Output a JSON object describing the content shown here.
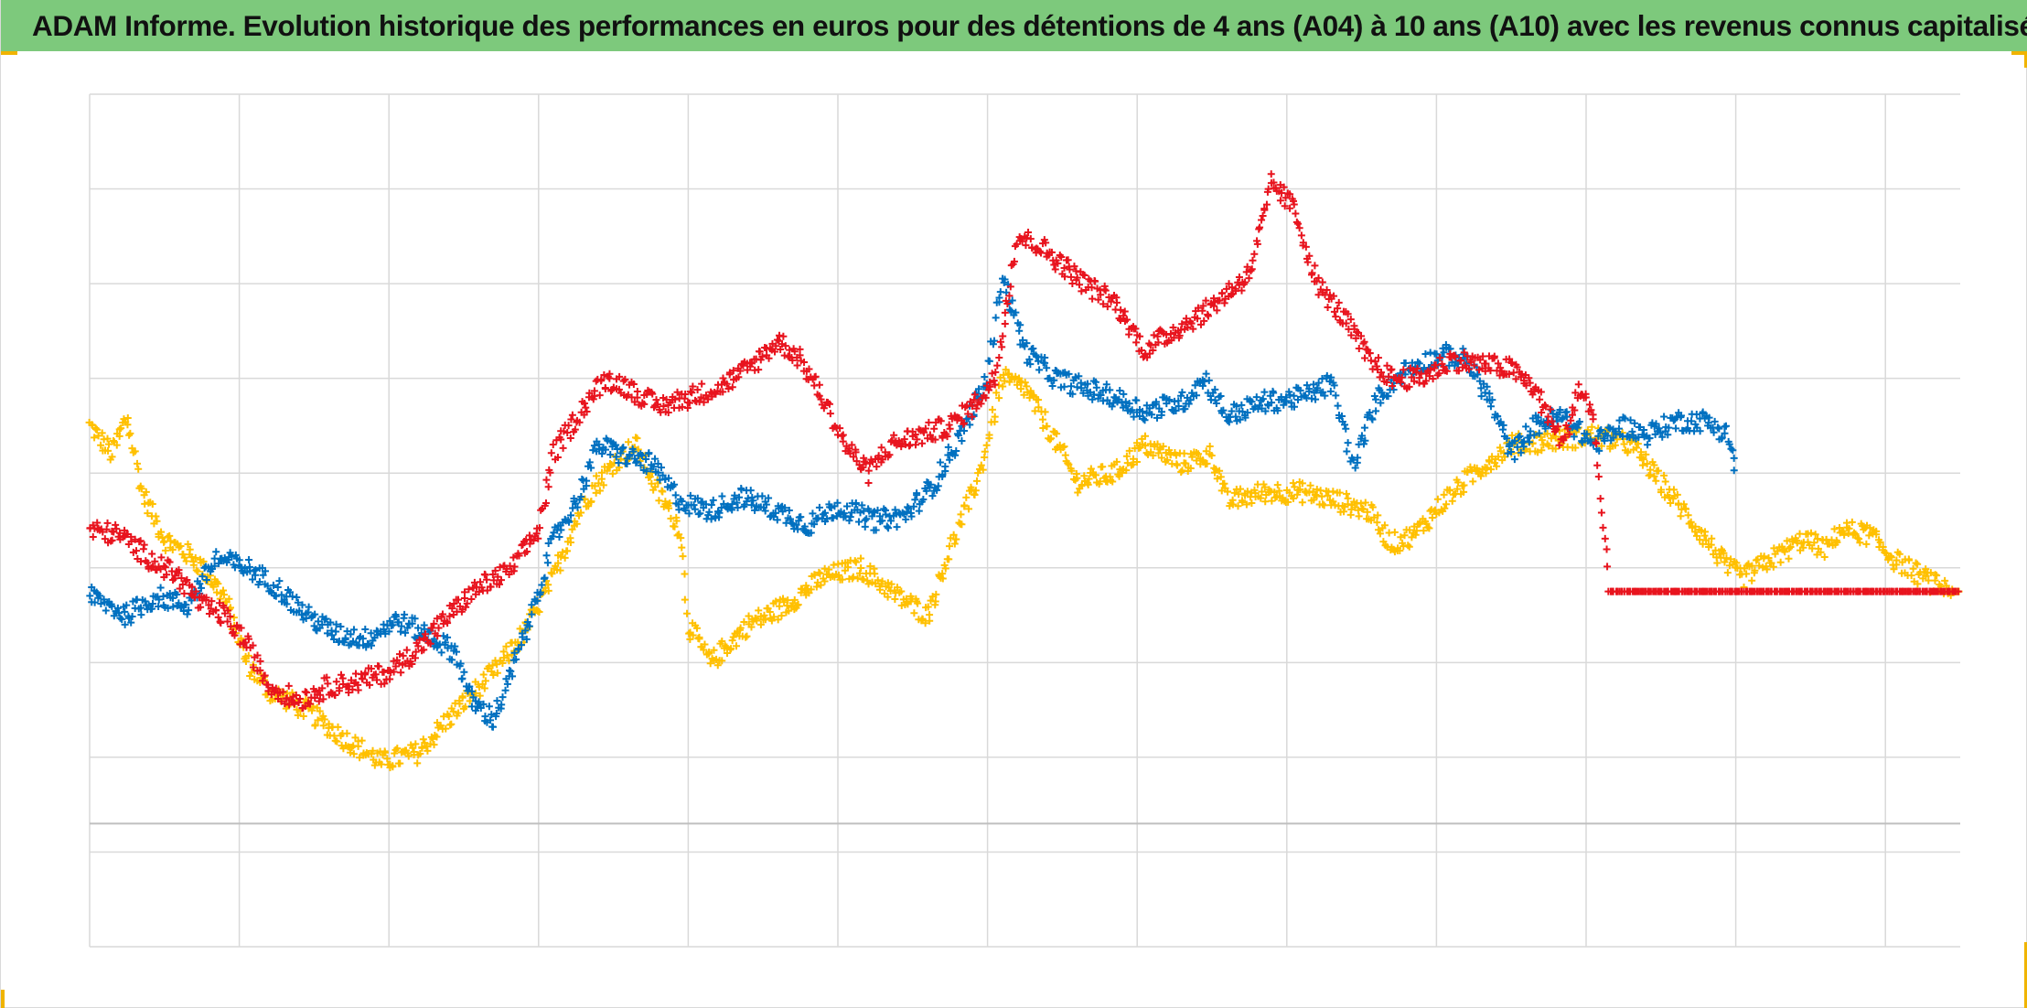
{
  "title": "ADAM Informe. Evolution historique des performances en euros pour des détentions de 4 ans (A04) à 10 ans (A10) avec les revenus connus capitalisés",
  "colors": {
    "title_bg": "#7dc97c",
    "grid": "#d9d9d9",
    "zero_line": "#bfbfbf",
    "handle": "#f0b400"
  },
  "chart_data": {
    "type": "scatter",
    "marker": "plus",
    "grid": true,
    "legend": "none",
    "axis_labels_visible": false,
    "x_gridlines": 12,
    "y_gridlines": 9,
    "series": [
      {
        "color": "#ffc000",
        "points": [
          [
            0,
            4.5
          ],
          [
            0.15,
            4.2
          ],
          [
            0.25,
            4.6
          ],
          [
            0.35,
            3.8
          ],
          [
            0.5,
            3.3
          ],
          [
            0.7,
            3.1
          ],
          [
            0.9,
            2.7
          ],
          [
            1.05,
            2.0
          ],
          [
            1.2,
            1.7
          ],
          [
            1.45,
            1.5
          ],
          [
            1.7,
            1.2
          ],
          [
            1.95,
            0.95
          ],
          [
            2.2,
            1.05
          ],
          [
            2.45,
            1.5
          ],
          [
            2.7,
            1.9
          ],
          [
            2.9,
            2.3
          ],
          [
            3.1,
            2.9
          ],
          [
            3.3,
            3.7
          ],
          [
            3.5,
            4.1
          ],
          [
            3.65,
            4.3
          ],
          [
            3.8,
            3.8
          ],
          [
            3.95,
            3.4
          ],
          [
            4.0,
            2.4
          ],
          [
            4.15,
            2.0
          ],
          [
            4.4,
            2.4
          ],
          [
            4.65,
            2.6
          ],
          [
            4.9,
            2.9
          ],
          [
            5.15,
            3.0
          ],
          [
            5.4,
            2.7
          ],
          [
            5.6,
            2.5
          ],
          [
            5.75,
            3.2
          ],
          [
            5.95,
            4.0
          ],
          [
            6.1,
            5.0
          ],
          [
            6.25,
            4.9
          ],
          [
            6.4,
            4.5
          ],
          [
            6.6,
            3.9
          ],
          [
            6.85,
            4.0
          ],
          [
            7.05,
            4.3
          ],
          [
            7.3,
            4.1
          ],
          [
            7.5,
            4.2
          ],
          [
            7.6,
            3.7
          ],
          [
            7.85,
            3.8
          ],
          [
            8.1,
            3.8
          ],
          [
            8.35,
            3.7
          ],
          [
            8.55,
            3.6
          ],
          [
            8.7,
            3.25
          ],
          [
            8.85,
            3.35
          ],
          [
            9.05,
            3.7
          ],
          [
            9.25,
            4.0
          ],
          [
            9.5,
            4.3
          ],
          [
            9.8,
            4.35
          ],
          [
            10.05,
            4.4
          ],
          [
            10.3,
            4.3
          ],
          [
            10.55,
            3.8
          ],
          [
            10.75,
            3.4
          ],
          [
            10.95,
            3.0
          ],
          [
            11.05,
            2.9
          ],
          [
            11.25,
            3.1
          ],
          [
            11.45,
            3.3
          ],
          [
            11.6,
            3.2
          ],
          [
            11.7,
            3.4
          ],
          [
            11.9,
            3.35
          ],
          [
            12.05,
            3.1
          ],
          [
            12.2,
            2.95
          ],
          [
            12.3,
            2.85
          ],
          [
            12.45,
            2.75
          ],
          [
            12.5,
            2.75
          ]
        ]
      },
      {
        "color": "#0070c0",
        "points": [
          [
            0,
            2.7
          ],
          [
            0.25,
            2.5
          ],
          [
            0.45,
            2.7
          ],
          [
            0.65,
            2.6
          ],
          [
            0.85,
            3.1
          ],
          [
            1.05,
            3.0
          ],
          [
            1.25,
            2.8
          ],
          [
            1.45,
            2.5
          ],
          [
            1.65,
            2.3
          ],
          [
            1.85,
            2.25
          ],
          [
            2.05,
            2.45
          ],
          [
            2.25,
            2.3
          ],
          [
            2.45,
            2.1
          ],
          [
            2.55,
            1.6
          ],
          [
            2.7,
            1.4
          ],
          [
            2.8,
            1.8
          ],
          [
            2.95,
            2.5
          ],
          [
            3.1,
            3.3
          ],
          [
            3.25,
            3.7
          ],
          [
            3.4,
            4.3
          ],
          [
            3.55,
            4.2
          ],
          [
            3.75,
            4.1
          ],
          [
            3.95,
            3.7
          ],
          [
            4.15,
            3.6
          ],
          [
            4.35,
            3.75
          ],
          [
            4.6,
            3.6
          ],
          [
            4.8,
            3.45
          ],
          [
            5.0,
            3.65
          ],
          [
            5.25,
            3.5
          ],
          [
            5.45,
            3.55
          ],
          [
            5.65,
            3.9
          ],
          [
            5.85,
            4.5
          ],
          [
            6.0,
            5.0
          ],
          [
            6.1,
            6.1
          ],
          [
            6.25,
            5.3
          ],
          [
            6.45,
            5.0
          ],
          [
            6.65,
            4.9
          ],
          [
            6.85,
            4.8
          ],
          [
            7.05,
            4.65
          ],
          [
            7.3,
            4.75
          ],
          [
            7.45,
            5.0
          ],
          [
            7.6,
            4.6
          ],
          [
            7.85,
            4.75
          ],
          [
            8.1,
            4.8
          ],
          [
            8.3,
            4.95
          ],
          [
            8.45,
            4.05
          ],
          [
            8.6,
            4.8
          ],
          [
            8.8,
            5.1
          ],
          [
            9.05,
            5.25
          ],
          [
            9.2,
            5.2
          ],
          [
            9.35,
            4.8
          ],
          [
            9.5,
            4.2
          ],
          [
            9.65,
            4.5
          ],
          [
            9.85,
            4.6
          ],
          [
            10.05,
            4.3
          ],
          [
            10.25,
            4.5
          ],
          [
            10.4,
            4.4
          ],
          [
            10.6,
            4.55
          ],
          [
            10.8,
            4.55
          ],
          [
            10.95,
            4.4
          ],
          [
            11.0,
            4.0
          ]
        ]
      },
      {
        "color": "#e8141e",
        "points": [
          [
            0,
            3.4
          ],
          [
            0.2,
            3.35
          ],
          [
            0.4,
            3.1
          ],
          [
            0.6,
            2.9
          ],
          [
            0.75,
            2.6
          ],
          [
            0.9,
            2.5
          ],
          [
            1.05,
            2.2
          ],
          [
            1.2,
            1.75
          ],
          [
            1.4,
            1.6
          ],
          [
            1.6,
            1.75
          ],
          [
            1.8,
            1.8
          ],
          [
            2.0,
            1.9
          ],
          [
            2.2,
            2.15
          ],
          [
            2.4,
            2.5
          ],
          [
            2.6,
            2.8
          ],
          [
            2.8,
            2.95
          ],
          [
            3.0,
            3.4
          ],
          [
            3.1,
            4.2
          ],
          [
            3.3,
            4.7
          ],
          [
            3.45,
            5.0
          ],
          [
            3.6,
            4.9
          ],
          [
            3.8,
            4.7
          ],
          [
            4.0,
            4.8
          ],
          [
            4.2,
            4.9
          ],
          [
            4.4,
            5.1
          ],
          [
            4.6,
            5.4
          ],
          [
            4.75,
            5.2
          ],
          [
            4.9,
            4.8
          ],
          [
            5.05,
            4.3
          ],
          [
            5.2,
            4.0
          ],
          [
            5.35,
            4.3
          ],
          [
            5.55,
            4.4
          ],
          [
            5.75,
            4.5
          ],
          [
            5.9,
            4.7
          ],
          [
            6.05,
            5.0
          ],
          [
            6.2,
            6.5
          ],
          [
            6.35,
            6.4
          ],
          [
            6.5,
            6.2
          ],
          [
            6.65,
            6.0
          ],
          [
            6.85,
            5.8
          ],
          [
            7.05,
            5.3
          ],
          [
            7.25,
            5.5
          ],
          [
            7.45,
            5.7
          ],
          [
            7.6,
            5.9
          ],
          [
            7.75,
            6.1
          ],
          [
            7.9,
            7.05
          ],
          [
            8.05,
            6.8
          ],
          [
            8.2,
            6.0
          ],
          [
            8.4,
            5.6
          ],
          [
            8.55,
            5.2
          ],
          [
            8.7,
            5.0
          ],
          [
            8.9,
            5.0
          ],
          [
            9.1,
            5.2
          ],
          [
            9.3,
            5.15
          ],
          [
            9.5,
            5.1
          ],
          [
            9.65,
            4.9
          ],
          [
            9.75,
            4.6
          ],
          [
            9.85,
            4.3
          ],
          [
            9.95,
            4.9
          ],
          [
            10.05,
            4.6
          ],
          [
            10.15,
            2.75
          ],
          [
            10.5,
            2.75
          ],
          [
            11.0,
            2.75
          ],
          [
            11.5,
            2.75
          ],
          [
            12.0,
            2.75
          ],
          [
            12.5,
            2.75
          ]
        ]
      }
    ]
  }
}
